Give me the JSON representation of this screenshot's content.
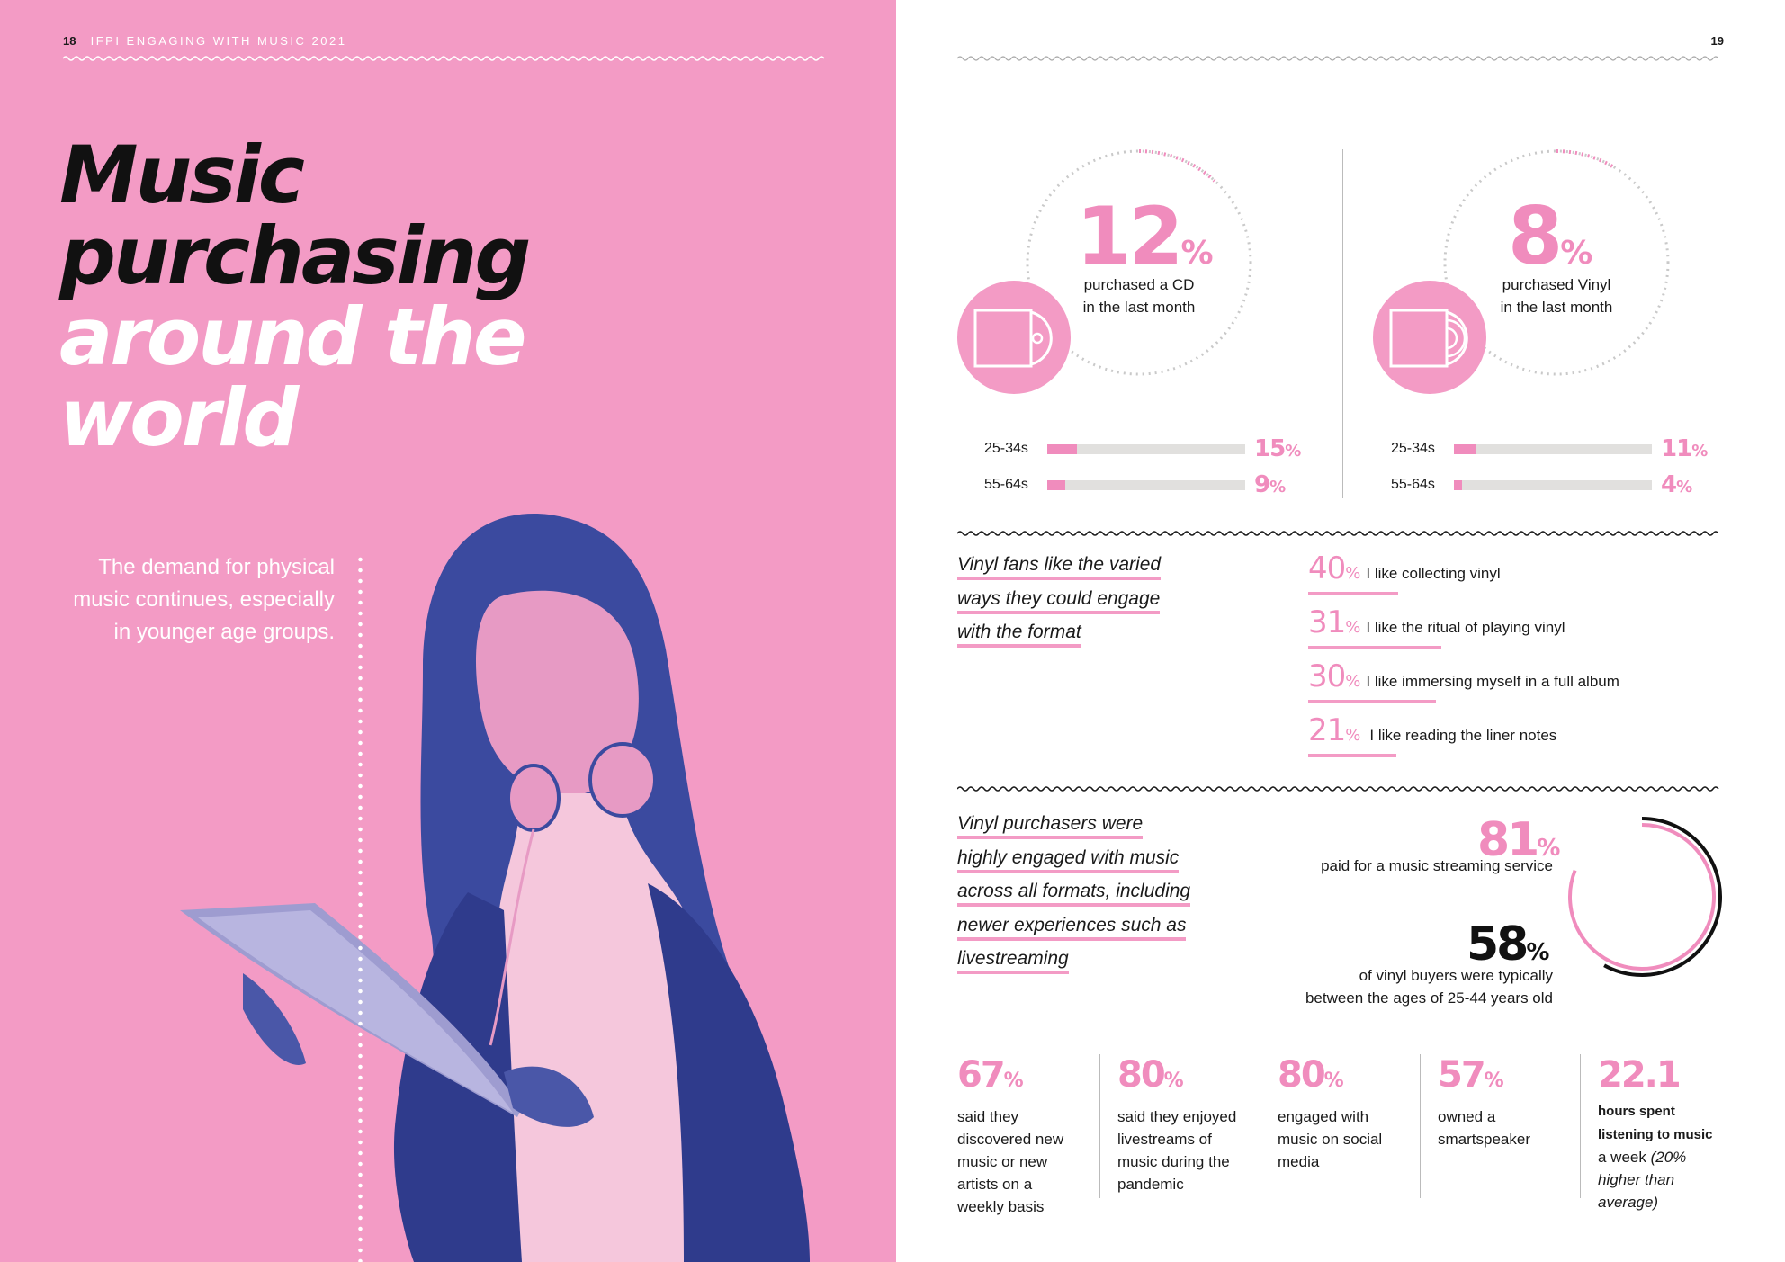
{
  "header": {
    "left_page_number": "18",
    "left_running_title": "IFPI ENGAGING WITH MUSIC 2021",
    "right_page_number": "19"
  },
  "title": {
    "line1": "Music",
    "line2": "purchasing",
    "line3": "around the",
    "line4": "world"
  },
  "intro": {
    "line1": "The demand for physical",
    "line2": "music continues, especially",
    "line3": "in younger age groups."
  },
  "cd_stat": {
    "value": "12",
    "sign": "%",
    "line1": "purchased a CD",
    "line2": "in the last month",
    "bars": [
      {
        "label": "25-34s",
        "value": "15",
        "fraction": 0.15
      },
      {
        "label": "55-64s",
        "value": "9",
        "fraction": 0.09
      }
    ]
  },
  "vinyl_stat": {
    "value": "8",
    "sign": "%",
    "line1": "purchased Vinyl",
    "line2": "in the last month",
    "bars": [
      {
        "label": "25-34s",
        "value": "11",
        "fraction": 0.11
      },
      {
        "label": "55-64s",
        "value": "4",
        "fraction": 0.04
      }
    ]
  },
  "fans_quote": {
    "line1": "Vinyl fans like the varied",
    "line2": "ways they could engage",
    "line3": "with the format"
  },
  "fans_list": [
    {
      "value": "40",
      "text": "I like collecting vinyl"
    },
    {
      "value": "31",
      "text": "I like the ritual of playing vinyl"
    },
    {
      "value": "30",
      "text": "I like immersing myself in a full album"
    },
    {
      "value": "21",
      "text": "I like reading the liner notes"
    }
  ],
  "purchasers_quote": {
    "line1": "Vinyl purchasers were",
    "line2": "highly engaged with music",
    "line3": "across all formats, including",
    "line4": "newer experiences such as",
    "line5": "livestreaming"
  },
  "streaming_stat": {
    "value": "81",
    "text": "paid for a music streaming service",
    "fraction": 0.81
  },
  "age_stat": {
    "value": "58",
    "line1": "of vinyl buyers were typically",
    "line2": "between the ages of 25-44 years old",
    "fraction": 0.58
  },
  "columns": [
    {
      "value": "67",
      "lines": [
        "said they",
        "discovered new",
        "music or new",
        "artists on a",
        "weekly basis"
      ]
    },
    {
      "value": "80",
      "lines": [
        "said they enjoyed",
        "livestreams of",
        "music during the",
        "pandemic"
      ]
    },
    {
      "value": "80",
      "lines": [
        "engaged with",
        "music on social",
        "media"
      ]
    },
    {
      "value": "57",
      "lines": [
        "owned a",
        "smartspeaker"
      ]
    }
  ],
  "hours_stat": {
    "value": "22.1",
    "bold1": "hours spent",
    "bold2": "listening to music",
    "line3a": "a week",
    "line3b": "(20%",
    "line4": "higher than",
    "line5": "average)"
  },
  "colors": {
    "pink": "#f39bc5",
    "pink_text": "#f08cbd",
    "blue": "#3b4a9f",
    "track": "#e1e0de"
  }
}
